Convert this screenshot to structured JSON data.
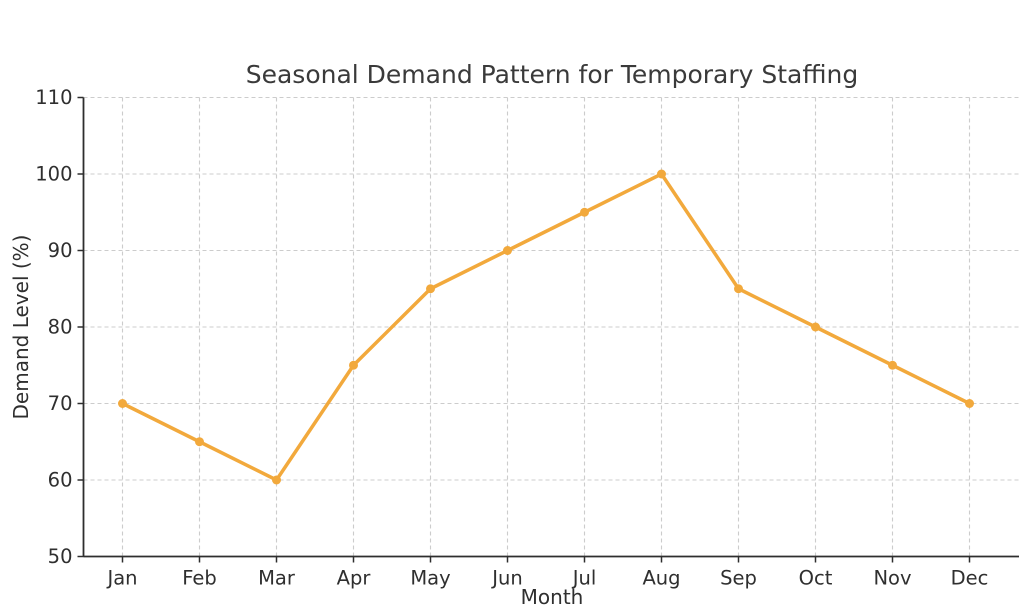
{
  "chart_data": {
    "type": "line",
    "title": "Seasonal Demand Pattern for Temporary Staffing",
    "xlabel": "Month",
    "ylabel": "Demand Level (%)",
    "categories": [
      "Jan",
      "Feb",
      "Mar",
      "Apr",
      "May",
      "Jun",
      "Jul",
      "Aug",
      "Sep",
      "Oct",
      "Nov",
      "Dec"
    ],
    "series": [
      {
        "name": "Demand Level",
        "values": [
          70,
          65,
          60,
          75,
          85,
          90,
          95,
          100,
          85,
          80,
          75,
          70
        ]
      }
    ],
    "ylim": [
      50,
      110
    ],
    "yticks": [
      50,
      60,
      70,
      80,
      90,
      100,
      110
    ],
    "grid": "dashed, both axes",
    "legend_position": "none",
    "colors": {
      "line": "#F2A93C",
      "marker": "#F2A93C",
      "grid": "#CCCCCC",
      "axis": "#2E2E2E",
      "tick_text": "#2F2F2F",
      "title_text": "#3A3A3A",
      "background": "#FFFFFF"
    }
  }
}
